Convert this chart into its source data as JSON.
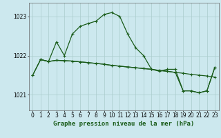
{
  "title": "Graphe pression niveau de la mer (hPa)",
  "background_color": "#cce8ee",
  "grid_color": "#aacccc",
  "line_color": "#1a5c1a",
  "xlim": [
    -0.5,
    23.5
  ],
  "ylim": [
    1020.6,
    1023.35
  ],
  "yticks": [
    1021,
    1022,
    1023
  ],
  "xticks": [
    0,
    1,
    2,
    3,
    4,
    5,
    6,
    7,
    8,
    9,
    10,
    11,
    12,
    13,
    14,
    15,
    16,
    17,
    18,
    19,
    20,
    21,
    22,
    23
  ],
  "series1_x": [
    0,
    1,
    2,
    3,
    4,
    5,
    6,
    7,
    8,
    9,
    10,
    11,
    12,
    13,
    14,
    15,
    16,
    17,
    18,
    19,
    20,
    21,
    22,
    23
  ],
  "series1_y": [
    1021.5,
    1021.9,
    1021.85,
    1022.35,
    1022.0,
    1022.55,
    1022.75,
    1022.82,
    1022.88,
    1023.05,
    1023.1,
    1023.0,
    1022.55,
    1022.2,
    1022.0,
    1021.65,
    1021.6,
    1021.65,
    1021.65,
    1021.1,
    1021.1,
    1021.05,
    1021.1,
    1021.7
  ],
  "series2_x": [
    1,
    2,
    3,
    4,
    5,
    6,
    7,
    8,
    9,
    10,
    11,
    12,
    13,
    14,
    15,
    16,
    17,
    18,
    19,
    20,
    21,
    22,
    23
  ],
  "series2_y": [
    1021.9,
    1021.85,
    1021.88,
    1021.87,
    1021.86,
    1021.84,
    1021.82,
    1021.8,
    1021.78,
    1021.75,
    1021.73,
    1021.71,
    1021.69,
    1021.67,
    1021.65,
    1021.62,
    1021.6,
    1021.57,
    1021.55,
    1021.52,
    1021.5,
    1021.48,
    1021.45
  ],
  "series3_x": [
    0,
    1,
    2,
    3,
    4,
    5,
    6,
    7,
    8,
    9,
    10,
    11,
    12,
    13,
    14,
    15,
    16,
    17,
    18,
    19,
    20,
    21,
    22,
    23
  ],
  "series3_y": [
    1021.5,
    1021.9,
    1021.85,
    1021.88,
    1021.87,
    1021.86,
    1021.84,
    1021.82,
    1021.8,
    1021.78,
    1021.75,
    1021.73,
    1021.71,
    1021.69,
    1021.67,
    1021.65,
    1021.62,
    1021.6,
    1021.57,
    1021.1,
    1021.1,
    1021.05,
    1021.1,
    1021.7
  ],
  "title_fontsize": 6.5,
  "tick_fontsize": 5.5,
  "marker_size": 3.0,
  "linewidth": 0.9
}
